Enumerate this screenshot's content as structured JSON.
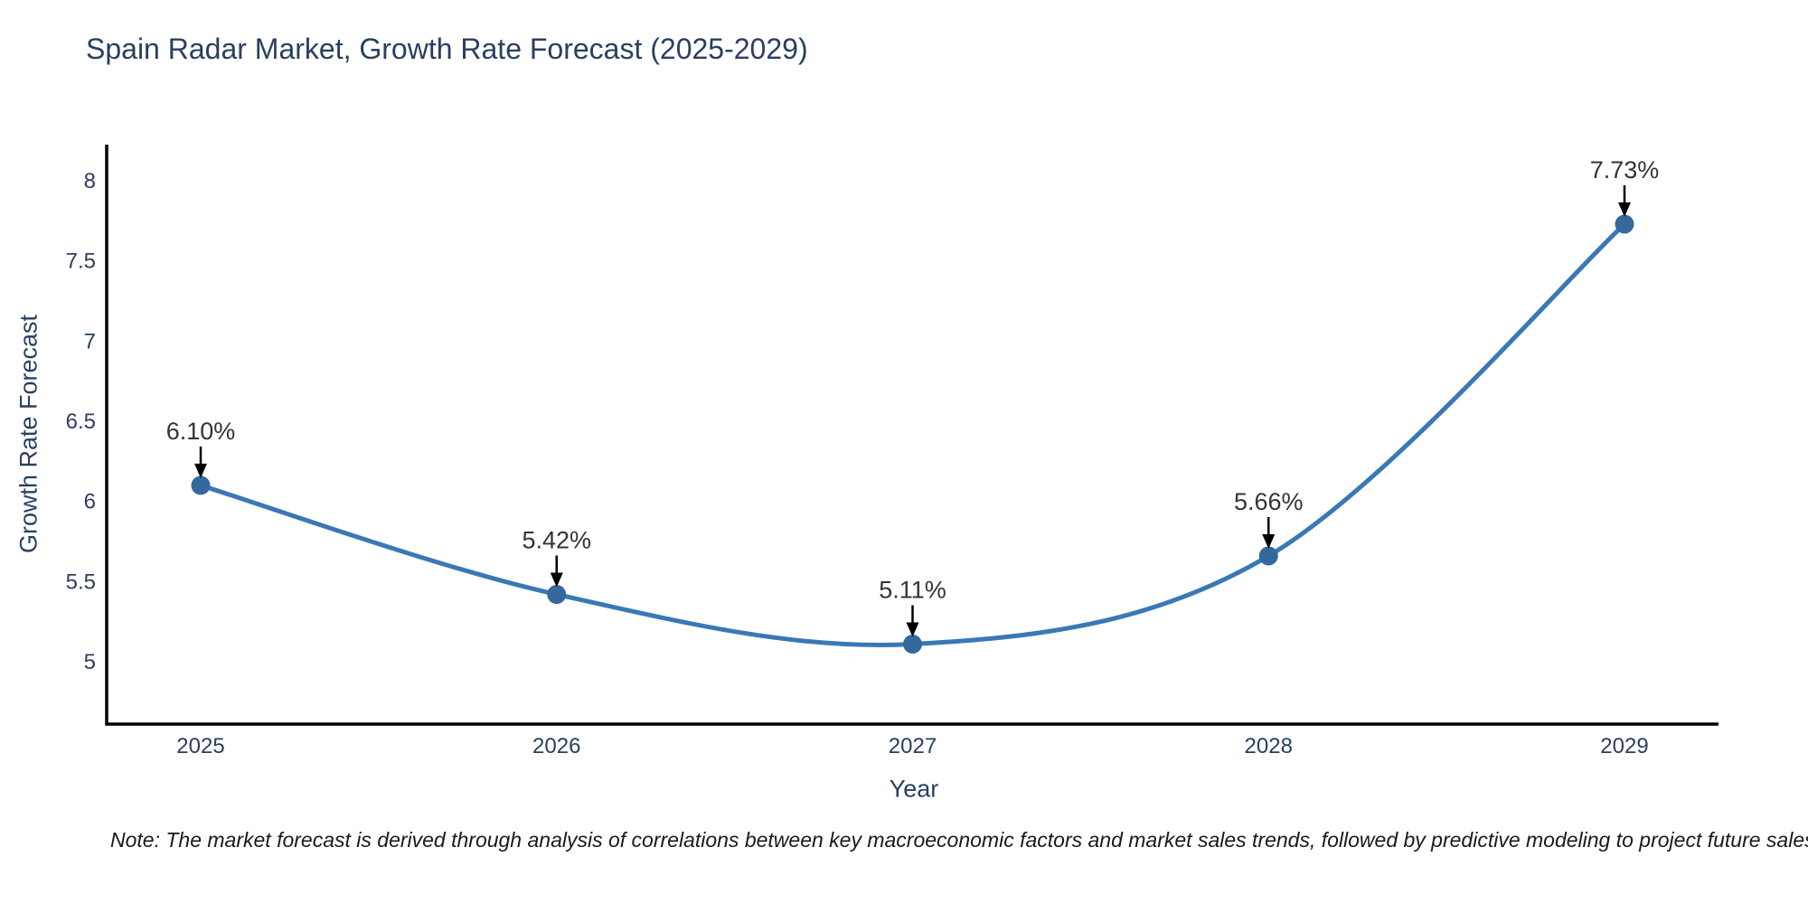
{
  "title": "Spain Radar Market, Growth Rate Forecast (2025-2029)",
  "note": "Note: The market forecast is derived through analysis of correlations between key macroeconomic factors and market sales trends, followed by predictive modeling to project future sales",
  "chart_data": {
    "type": "line",
    "title": "Spain Radar Market, Growth Rate Forecast (2025-2029)",
    "categories": [
      "2025",
      "2026",
      "2027",
      "2028",
      "2029"
    ],
    "values": [
      6.1,
      5.42,
      5.11,
      5.66,
      7.73
    ],
    "point_labels": [
      "6.10%",
      "5.42%",
      "5.11%",
      "5.66%",
      "7.73%"
    ],
    "xlabel": "Year",
    "ylabel": "Growth Rate Forecast",
    "yticks": [
      5,
      5.5,
      6,
      6.5,
      7,
      7.5,
      8
    ],
    "ylim": [
      4.61,
      8.23
    ],
    "grid": false,
    "legend_position": "none",
    "line_shape": "spline",
    "colors": {
      "line": "#3a78b5",
      "marker": "#35689c",
      "axis": "#000000",
      "tick_label": "#2a3f5f",
      "title": "#2a3f5f",
      "annotation_text": "#333333",
      "arrow": "#000000",
      "background": "#ffffff"
    }
  }
}
